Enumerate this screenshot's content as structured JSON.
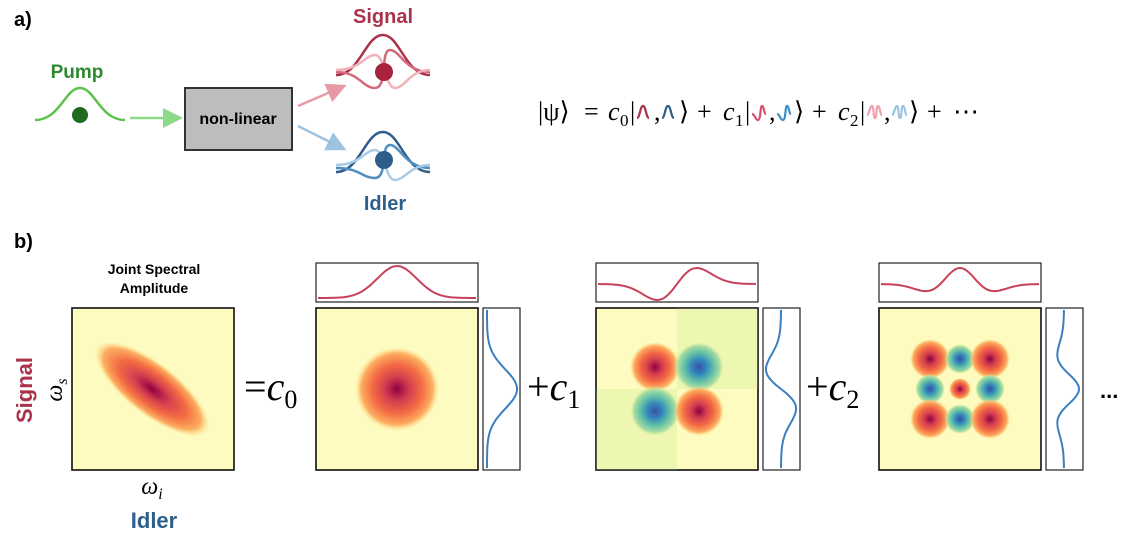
{
  "panel_a": {
    "label": "a)",
    "pump": "Pump",
    "device": "non-linear",
    "signal": "Signal",
    "idler": "Idler",
    "equation": {
      "state": "|ψ⟩",
      "equals": "=",
      "coefficient": "c",
      "subscripts": [
        "0",
        "1",
        "2"
      ],
      "ket_open": "|",
      "separator": ",",
      "ket_close": "⟩",
      "plus": "+",
      "ellipsis": "⋯"
    }
  },
  "panel_b": {
    "label": "b)",
    "jsa_title": [
      "Joint Spectral",
      "Amplitude"
    ],
    "signal_axis": "Signal",
    "omega": "ω",
    "signal_sub": "s",
    "idler_sub": "i",
    "idler_axis": "Idler",
    "equals": "=",
    "coefficient": "c",
    "subscripts": [
      "0",
      "1",
      "2"
    ],
    "plus": "+",
    "ellipsis": "..."
  }
}
